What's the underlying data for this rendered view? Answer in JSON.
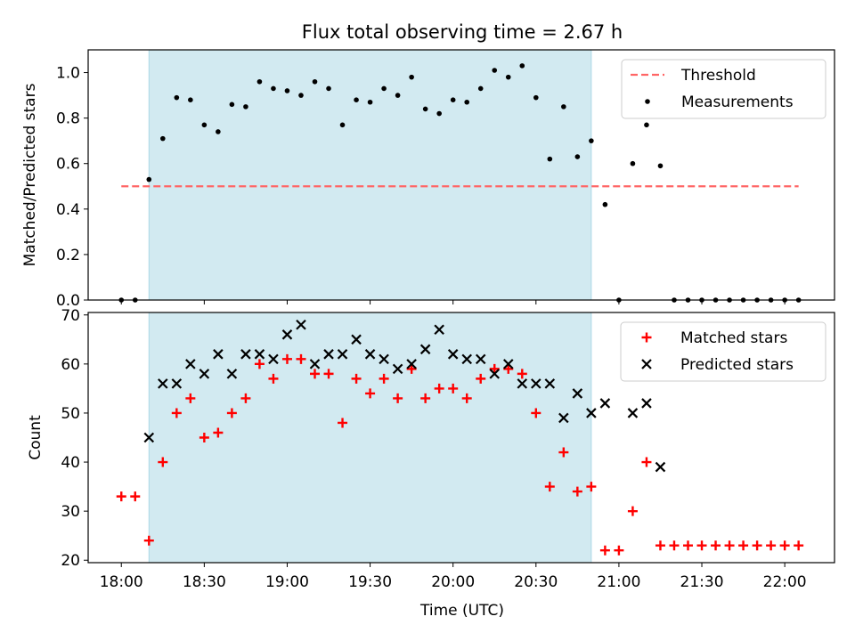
{
  "figure": {
    "title": "Flux total observing time = 2.67 h",
    "xlabel": "Time (UTC)",
    "xticks": [
      {
        "t": 0,
        "label": "18:00"
      },
      {
        "t": 30,
        "label": "18:30"
      },
      {
        "t": 60,
        "label": "19:00"
      },
      {
        "t": 90,
        "label": "19:30"
      },
      {
        "t": 120,
        "label": "20:00"
      },
      {
        "t": 150,
        "label": "20:30"
      },
      {
        "t": 180,
        "label": "21:00"
      },
      {
        "t": 210,
        "label": "21:30"
      },
      {
        "t": 240,
        "label": "22:00"
      }
    ]
  },
  "colors": {
    "shade": "#add8e6",
    "threshold": "#ff6666",
    "measurements": "#000000",
    "matched": "#ff0000",
    "predicted": "#000000"
  },
  "chart_data": [
    {
      "type": "scatter",
      "title": "Flux total observing time = 2.67 h",
      "ylabel": "Matched/Predicted stars",
      "xlabel": "",
      "xunit": "minutes after 18:00 UTC",
      "xlim": [
        -12,
        258
      ],
      "ylim": [
        0,
        1.1
      ],
      "yticks": [
        "0.0",
        "0.2",
        "0.4",
        "0.6",
        "0.8",
        "1.0"
      ],
      "ytick_values": [
        0,
        0.2,
        0.4,
        0.6,
        0.8,
        1.0
      ],
      "shaded_interval": [
        10,
        170
      ],
      "legend": {
        "position": "top-right",
        "entries": [
          "Threshold",
          "Measurements"
        ]
      },
      "threshold": {
        "name": "Threshold",
        "y": 0.5,
        "x": [
          0,
          245
        ]
      },
      "series": [
        {
          "name": "Measurements",
          "x": [
            0,
            5,
            10,
            15,
            20,
            25,
            30,
            35,
            40,
            45,
            50,
            55,
            60,
            65,
            70,
            75,
            80,
            85,
            90,
            95,
            100,
            105,
            110,
            115,
            120,
            125,
            130,
            135,
            140,
            145,
            150,
            155,
            160,
            165,
            170,
            175,
            180,
            185,
            190,
            195,
            200,
            205,
            210,
            215,
            220,
            225,
            230,
            235,
            240,
            245
          ],
          "y": [
            0,
            0,
            0.53,
            0.71,
            0.89,
            0.88,
            0.77,
            0.74,
            0.86,
            0.85,
            0.96,
            0.93,
            0.92,
            0.9,
            0.96,
            0.93,
            0.77,
            0.88,
            0.87,
            0.93,
            0.9,
            0.98,
            0.84,
            0.82,
            0.88,
            0.87,
            0.93,
            1.01,
            0.98,
            1.03,
            0.89,
            0.62,
            0.85,
            0.63,
            0.7,
            0.42,
            0,
            0.6,
            0.77,
            0.59,
            0,
            0,
            0,
            0,
            0,
            0,
            0,
            0,
            0,
            0
          ]
        }
      ]
    },
    {
      "type": "scatter",
      "ylabel": "Count",
      "xlabel": "Time (UTC)",
      "xunit": "minutes after 18:00 UTC",
      "xlim": [
        -12,
        258
      ],
      "ylim": [
        19.5,
        70.5
      ],
      "yticks": [
        "20",
        "30",
        "40",
        "50",
        "60",
        "70"
      ],
      "ytick_values": [
        20,
        30,
        40,
        50,
        60,
        70
      ],
      "shaded_interval": [
        10,
        170
      ],
      "legend": {
        "position": "top-right",
        "entries": [
          "Matched stars",
          "Predicted stars"
        ]
      },
      "series": [
        {
          "name": "Matched stars",
          "marker": "plus",
          "x": [
            0,
            5,
            10,
            15,
            20,
            25,
            30,
            35,
            40,
            45,
            50,
            55,
            60,
            65,
            70,
            75,
            80,
            85,
            90,
            95,
            100,
            105,
            110,
            115,
            120,
            125,
            130,
            135,
            140,
            145,
            150,
            155,
            160,
            165,
            170,
            175,
            180,
            185,
            190,
            195,
            200,
            205,
            210,
            215,
            220,
            225,
            230,
            235,
            240,
            245
          ],
          "y": [
            33,
            33,
            24,
            40,
            50,
            53,
            45,
            46,
            50,
            53,
            60,
            57,
            61,
            61,
            58,
            58,
            48,
            57,
            54,
            57,
            53,
            59,
            53,
            55,
            55,
            53,
            57,
            59,
            59,
            58,
            50,
            35,
            42,
            34,
            35,
            22,
            22,
            30,
            40,
            23,
            23,
            23,
            23,
            23,
            23,
            23,
            23,
            23,
            23,
            23
          ]
        },
        {
          "name": "Predicted stars",
          "marker": "x",
          "x": [
            10,
            15,
            20,
            25,
            30,
            35,
            40,
            45,
            50,
            55,
            60,
            65,
            70,
            75,
            80,
            85,
            90,
            95,
            100,
            105,
            110,
            115,
            120,
            125,
            130,
            135,
            140,
            145,
            150,
            155,
            160,
            165,
            170,
            175,
            185,
            190,
            195
          ],
          "y": [
            45,
            56,
            56,
            60,
            58,
            62,
            58,
            62,
            62,
            61,
            66,
            68,
            60,
            62,
            62,
            65,
            62,
            61,
            59,
            60,
            63,
            67,
            62,
            61,
            61,
            58,
            60,
            56,
            56,
            56,
            49,
            54,
            50,
            52,
            50,
            52,
            39
          ]
        }
      ]
    }
  ]
}
